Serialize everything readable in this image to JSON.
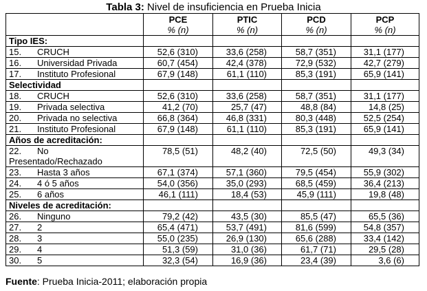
{
  "title": {
    "bold": "Tabla 3:",
    "text": " Nivel de insuficiencia en Prueba Inicia"
  },
  "columns": [
    {
      "name": "PCE",
      "sub": "% (n)"
    },
    {
      "name": "PTIC",
      "sub": "% (n)"
    },
    {
      "name": "PCD",
      "sub": "% (n)"
    },
    {
      "name": "PCP",
      "sub": "% (n)"
    }
  ],
  "sections": [
    {
      "heading": "Tipo IES:",
      "rows": [
        {
          "num": "15.",
          "label": "CRUCH",
          "values": [
            "52,6 (310)",
            "33,6 (258)",
            "58,7 (351)",
            "31,1 (177)"
          ]
        },
        {
          "num": "16.",
          "label": "Universidad Privada",
          "values": [
            "60,7 (454)",
            "42,4 (378)",
            "72,9 (532)",
            "42,7 (279)"
          ]
        },
        {
          "num": "17.",
          "label": "Instituto Profesional",
          "values": [
            "67,9 (148)",
            "61,1 (110)",
            "85,3 (191)",
            "65,9 (141)"
          ]
        }
      ]
    },
    {
      "heading": "Selectividad",
      "rows": [
        {
          "num": "18.",
          "label": "CRUCH",
          "values": [
            "52,6 (310)",
            "33,6 (258)",
            "58,7 (351)",
            "31,1 (177)"
          ]
        },
        {
          "num": "19.",
          "label": "Privada selectiva",
          "values": [
            "41,2 (70)",
            "25,7 (47)",
            "48,8 (84)",
            "14,8 (25)"
          ]
        },
        {
          "num": "20.",
          "label": "Privada no selectiva",
          "values": [
            "66,8 (364)",
            "46,8 (331)",
            "80,3 (448)",
            "52,5 (254)"
          ]
        },
        {
          "num": "21.",
          "label": "Instituto Profesional",
          "values": [
            "67,9 (148)",
            "61,1 (110)",
            "85,3 (191)",
            "65,9 (141)"
          ]
        }
      ]
    },
    {
      "heading": "Años de acreditación:",
      "rows": [
        {
          "num": "22.",
          "label": "No",
          "label2": "Presentado/Rechazado",
          "values": [
            "78,5 (51)",
            "48,2 (40)",
            "72,5 (50)",
            "49,3 (34)"
          ]
        },
        {
          "num": "23.",
          "label": "Hasta 3 años",
          "values": [
            "67,1 (374)",
            "57,1 (360)",
            "79,5 (454)",
            "55,9 (302)"
          ]
        },
        {
          "num": "24.",
          "label": "4 ó 5 años",
          "values": [
            "54,0 (356)",
            "35,0 (293)",
            "68,5 (459)",
            "36,4 (213)"
          ]
        },
        {
          "num": "25.",
          "label": "6 años",
          "values": [
            "46,1 (111)",
            "18,4 (53)",
            "45,9 (111)",
            "19,8 (48)"
          ]
        }
      ]
    },
    {
      "heading": "Niveles de acreditación:",
      "rows": [
        {
          "num": "26.",
          "label": "Ninguno",
          "values": [
            "79,2 (42)",
            "43,5 (30)",
            "85,5 (47)",
            "65,5 (36)"
          ]
        },
        {
          "num": "27.",
          "label": "2",
          "values": [
            "65,4 (471)",
            "53,7 (491)",
            "81,6 (599)",
            "54,8 (357)"
          ]
        },
        {
          "num": "28.",
          "label": "3",
          "values": [
            "55,0 (235)",
            "26,9 (130)",
            "65,6 (288)",
            "33,4 (142)"
          ]
        },
        {
          "num": "29.",
          "label": "4",
          "values": [
            "51,3 (59)",
            "31,0 (36)",
            "61,7 (71)",
            "29,5 (28)"
          ]
        },
        {
          "num": "30.",
          "label": "5",
          "values": [
            "32,3 (54)",
            "16,9 (36)",
            "23,4 (39)",
            "3,6 (6)"
          ]
        }
      ]
    }
  ],
  "source": {
    "bold": "Fuente",
    "text": ": Prueba Inicia-2011; elaboración propia"
  }
}
